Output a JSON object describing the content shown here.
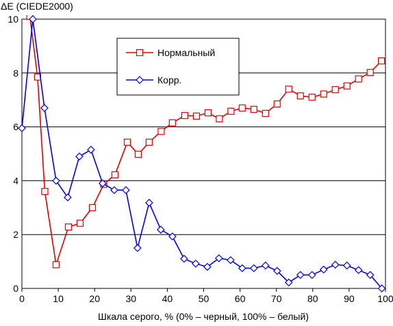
{
  "chart_data": {
    "type": "line",
    "title": "",
    "ylabel": "ΔE (CIEDE2000)",
    "xlabel": "Шкала серого, % (0% – черный, 100% – белый)",
    "xlim": [
      0,
      100
    ],
    "ylim": [
      0,
      10
    ],
    "x_ticks": [
      "0",
      "10",
      "20",
      "30",
      "40",
      "50",
      "60",
      "70",
      "80",
      "90",
      "100"
    ],
    "y_ticks": [
      "0",
      "2",
      "4",
      "6",
      "8",
      "10"
    ],
    "grid": "horizontal",
    "legend_position": "top-center",
    "series": [
      {
        "name": "Нормальный",
        "color": "#e00000",
        "marker": "square",
        "x": [
          2.2,
          4.3,
          6.3,
          9.4,
          12.8,
          16,
          19.4,
          22.5,
          25.6,
          29,
          32,
          35,
          38.3,
          41.4,
          44.8,
          48,
          51.2,
          54.3,
          57.5,
          60.6,
          63.8,
          67,
          70.2,
          73.4,
          76.6,
          79.8,
          83,
          86.2,
          89.4,
          92.6,
          95.8,
          98.9
        ],
        "y": [
          10.1,
          7.85,
          3.6,
          0.88,
          2.28,
          2.42,
          3.0,
          3.87,
          4.22,
          5.43,
          4.98,
          5.43,
          5.83,
          6.15,
          6.42,
          6.4,
          6.52,
          6.3,
          6.58,
          6.7,
          6.65,
          6.5,
          6.85,
          7.4,
          7.15,
          7.1,
          7.22,
          7.38,
          7.52,
          7.78,
          8.02,
          8.45
        ]
      },
      {
        "name": "Корр.",
        "color": "#0000e0",
        "marker": "diamond",
        "x": [
          0,
          3,
          6.2,
          9.4,
          12.6,
          15.8,
          19,
          22.2,
          25.4,
          28.6,
          31.8,
          35,
          38.2,
          41.4,
          44.6,
          47.8,
          51,
          54.2,
          57.4,
          60.6,
          63.8,
          67,
          70.2,
          73.4,
          76.6,
          79.8,
          83,
          86.2,
          89.4,
          92.6,
          95.8,
          99
        ],
        "y": [
          5.95,
          10.0,
          6.7,
          4.0,
          3.38,
          4.9,
          5.15,
          3.9,
          3.65,
          3.65,
          1.5,
          3.18,
          2.18,
          1.93,
          1.1,
          0.92,
          0.8,
          1.12,
          1.05,
          0.75,
          0.75,
          0.85,
          0.65,
          0.22,
          0.5,
          0.5,
          0.7,
          0.88,
          0.85,
          0.68,
          0.5,
          0.0
        ]
      }
    ]
  }
}
